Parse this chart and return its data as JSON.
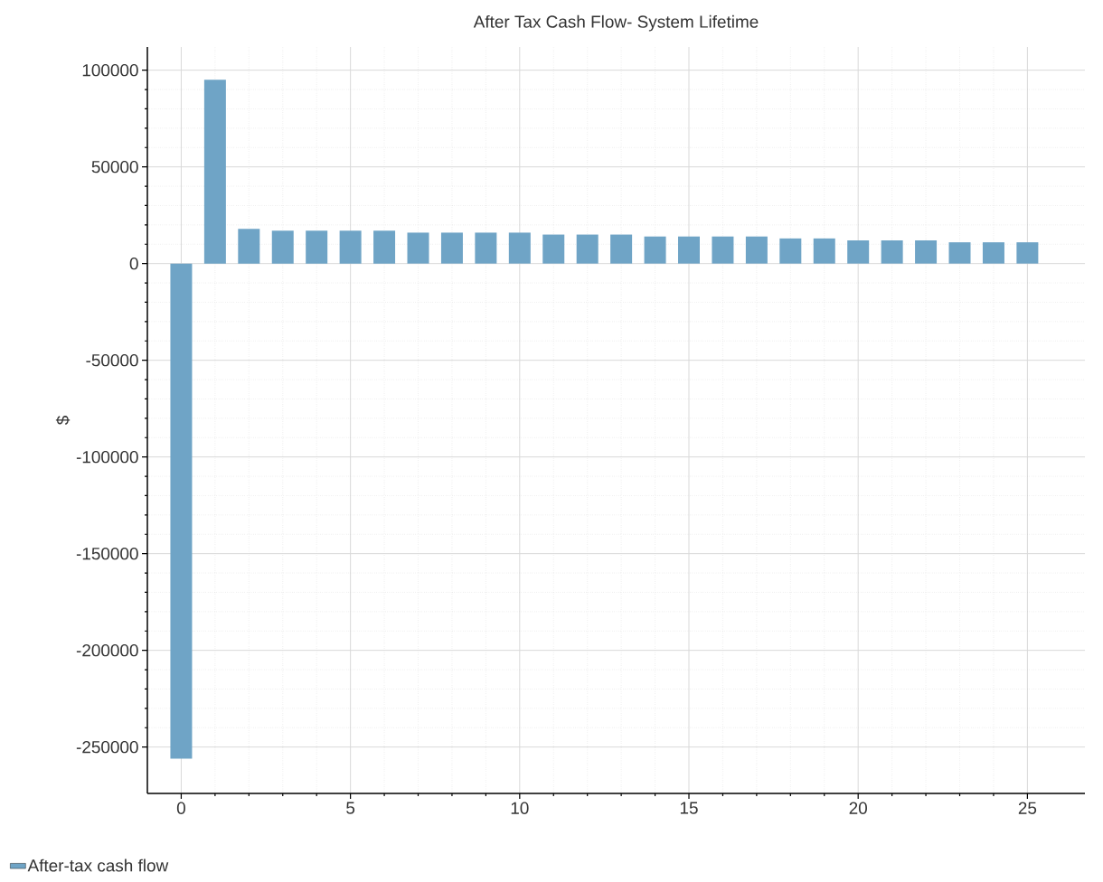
{
  "chart_data": {
    "type": "bar",
    "title": "After Tax Cash Flow- System Lifetime",
    "ylabel": "$",
    "x": [
      0,
      1,
      2,
      3,
      4,
      5,
      6,
      7,
      8,
      9,
      10,
      11,
      12,
      13,
      14,
      15,
      16,
      17,
      18,
      19,
      20,
      21,
      22,
      23,
      24,
      25
    ],
    "series": [
      {
        "name": "After-tax cash flow",
        "color": "#6fa4c6",
        "values": [
          -256000,
          95000,
          18000,
          17000,
          17000,
          17000,
          17000,
          16000,
          16000,
          16000,
          16000,
          15000,
          15000,
          15000,
          14000,
          14000,
          14000,
          14000,
          13000,
          13000,
          12000,
          12000,
          12000,
          11000,
          11000,
          11000
        ]
      }
    ],
    "xlim": [
      -1,
      26.7
    ],
    "xticks": [
      0,
      5,
      10,
      15,
      20,
      25
    ],
    "ylim": [
      -274000,
      112000
    ],
    "yticks": [
      -250000,
      -200000,
      -150000,
      -100000,
      -50000,
      0,
      50000,
      100000
    ],
    "grid": true,
    "legend": "bottom left"
  }
}
